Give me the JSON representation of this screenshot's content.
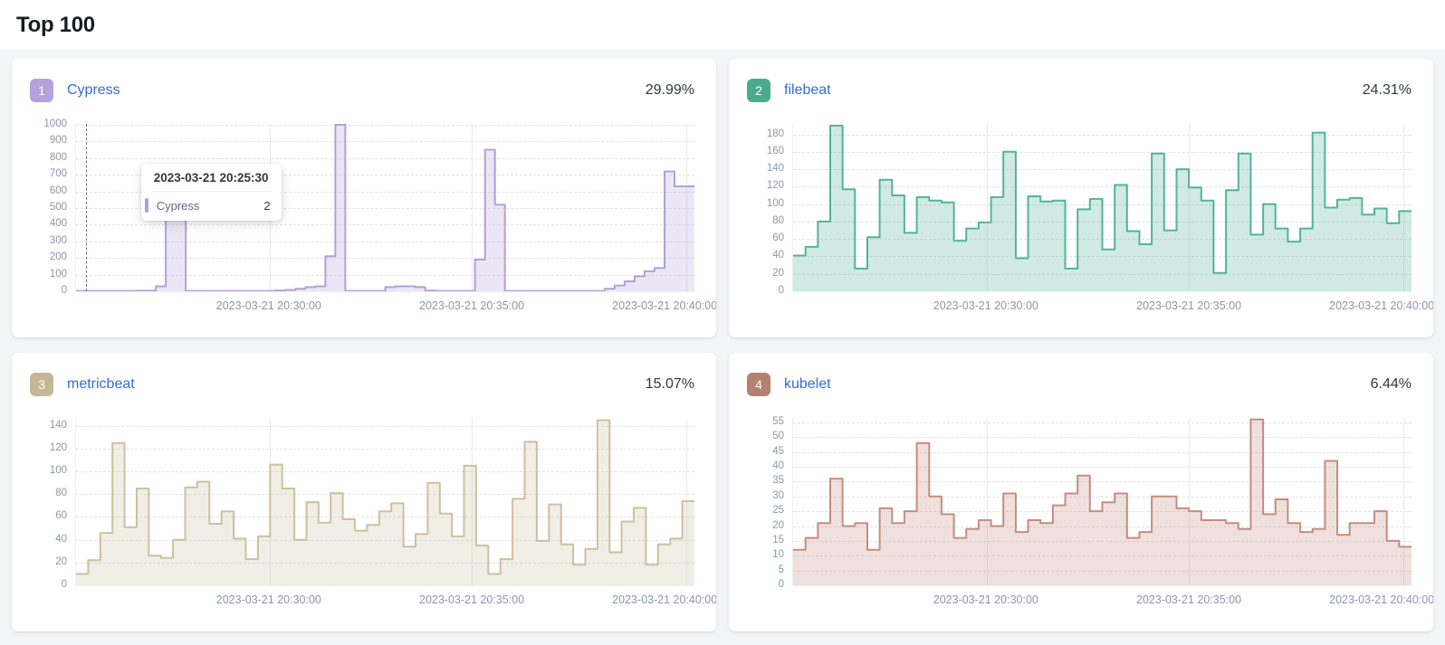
{
  "page_title": "Top 100",
  "cards": [
    {
      "rank": "1",
      "name": "Cypress",
      "percent": "29.99%",
      "color": {
        "badge": "#b5a2d9",
        "stroke": "#b3a0d6",
        "fill": "rgba(179,160,214,0.26)"
      },
      "tooltip": {
        "time": "2023-03-21 20:25:30",
        "series": "Cypress",
        "value": "2"
      }
    },
    {
      "rank": "2",
      "name": "filebeat",
      "percent": "24.31%",
      "color": {
        "badge": "#4cab8f",
        "stroke": "#54b399",
        "fill": "rgba(84,179,153,0.27)"
      }
    },
    {
      "rank": "3",
      "name": "metricbeat",
      "percent": "15.07%",
      "color": {
        "badge": "#c4b795",
        "stroke": "#cdc0a0",
        "fill": "rgba(205,192,160,0.27)"
      }
    },
    {
      "rank": "4",
      "name": "kubelet",
      "percent": "6.44%",
      "color": {
        "badge": "#b5806f",
        "stroke": "#c48d80",
        "fill": "rgba(196,141,128,0.27)"
      }
    }
  ],
  "chart_data": [
    {
      "type": "area",
      "title": "Cypress",
      "legend_position": "none",
      "grid": true,
      "x_labels": [
        "2023-03-21 20:30:00",
        "2023-03-21 20:35:00",
        "2023-03-21 20:40:00"
      ],
      "y_ticks": [
        0,
        100,
        200,
        300,
        400,
        500,
        600,
        700,
        800,
        900,
        1000
      ],
      "y_max": 1005,
      "values": [
        2,
        2,
        2,
        2,
        2,
        2,
        3,
        3,
        30,
        500,
        500,
        2,
        2,
        2,
        2,
        2,
        2,
        2,
        2,
        2,
        5,
        8,
        15,
        25,
        30,
        210,
        1000,
        2,
        2,
        2,
        2,
        25,
        30,
        30,
        25,
        5,
        2,
        2,
        2,
        2,
        190,
        850,
        520,
        2,
        2,
        2,
        2,
        2,
        2,
        2,
        2,
        2,
        2,
        15,
        35,
        60,
        90,
        120,
        140,
        720,
        630,
        630
      ],
      "highlighted_point": {
        "x": "2023-03-21 20:25:30",
        "y": 2
      }
    },
    {
      "type": "area",
      "title": "filebeat",
      "legend_position": "none",
      "grid": true,
      "x_labels": [
        "2023-03-21 20:30:00",
        "2023-03-21 20:35:00",
        "2023-03-21 20:40:00"
      ],
      "y_ticks": [
        0,
        20,
        40,
        60,
        80,
        100,
        120,
        140,
        160,
        180
      ],
      "y_max": 192,
      "values": [
        41,
        51,
        80,
        190,
        117,
        26,
        62,
        128,
        110,
        67,
        108,
        104,
        102,
        58,
        72,
        79,
        108,
        160,
        38,
        109,
        103,
        104,
        26,
        94,
        106,
        48,
        122,
        69,
        54,
        158,
        70,
        140,
        119,
        104,
        21,
        116,
        158,
        65,
        100,
        72,
        57,
        72,
        182,
        96,
        105,
        107,
        88,
        95,
        78,
        92
      ]
    },
    {
      "type": "area",
      "title": "metricbeat",
      "legend_position": "none",
      "grid": true,
      "x_labels": [
        "2023-03-21 20:30:00",
        "2023-03-21 20:35:00",
        "2023-03-21 20:40:00"
      ],
      "y_ticks": [
        0,
        20,
        40,
        60,
        80,
        100,
        120,
        140
      ],
      "y_max": 147,
      "values": [
        10,
        22,
        46,
        125,
        51,
        85,
        26,
        24,
        40,
        86,
        91,
        54,
        65,
        41,
        23,
        43,
        106,
        85,
        40,
        73,
        55,
        81,
        58,
        48,
        53,
        65,
        72,
        34,
        45,
        90,
        63,
        43,
        105,
        35,
        10,
        23,
        76,
        126,
        39,
        71,
        36,
        18,
        32,
        145,
        29,
        56,
        68,
        18,
        36,
        41,
        74
      ]
    },
    {
      "type": "area",
      "title": "kubelet",
      "legend_position": "none",
      "grid": true,
      "x_labels": [
        "2023-03-21 20:30:00",
        "2023-03-21 20:35:00",
        "2023-03-21 20:40:00"
      ],
      "y_ticks": [
        0,
        5,
        10,
        15,
        20,
        25,
        30,
        35,
        40,
        45,
        50,
        55
      ],
      "y_max": 56.5,
      "values": [
        12,
        16,
        21,
        36,
        20,
        21,
        12,
        26,
        21,
        25,
        48,
        30,
        24,
        16,
        19,
        22,
        20,
        31,
        18,
        22,
        21,
        27,
        31,
        37,
        25,
        28,
        31,
        16,
        18,
        30,
        30,
        26,
        25,
        22,
        22,
        21,
        19,
        56,
        24,
        29,
        21,
        18,
        19,
        42,
        17,
        21,
        21,
        25,
        15,
        13
      ]
    }
  ]
}
